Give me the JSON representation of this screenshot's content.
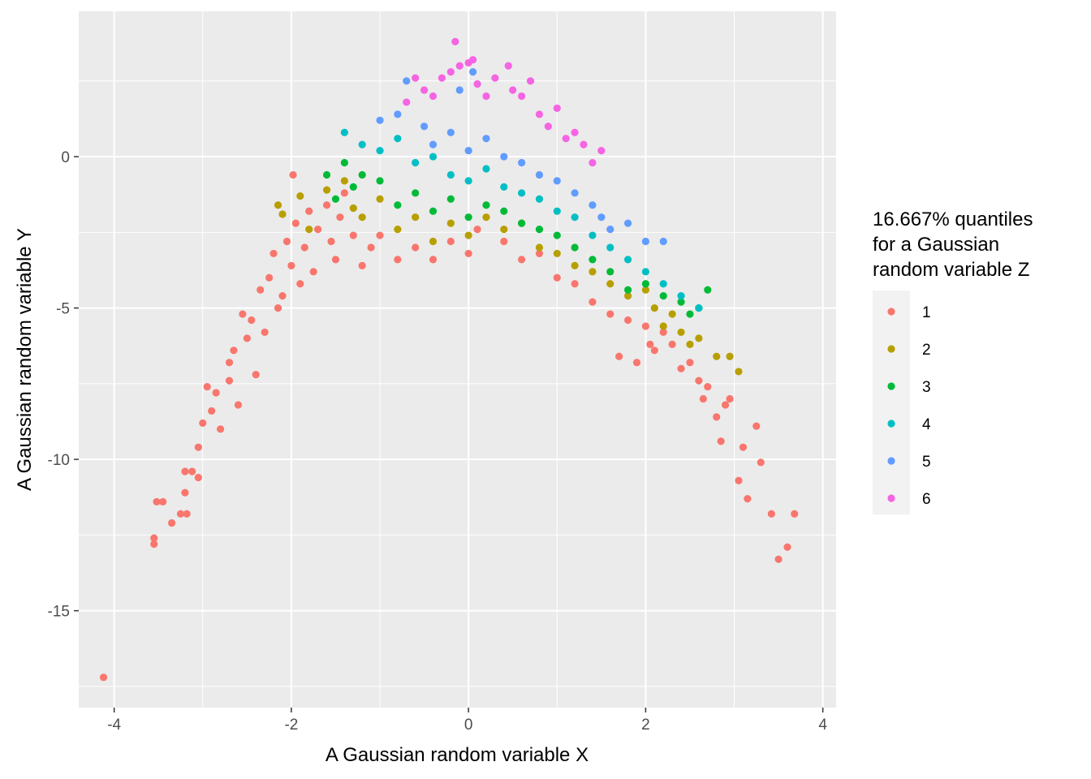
{
  "chart_data": {
    "type": "scatter",
    "title": "",
    "xlabel": "A Gaussian random variable X",
    "ylabel": "A Gaussian random variable Y",
    "xlim": [
      -4.4,
      4.15
    ],
    "ylim": [
      -18.2,
      4.8
    ],
    "x_ticks": [
      -4,
      -2,
      0,
      2,
      4
    ],
    "y_ticks": [
      0,
      -5,
      -10,
      -15
    ],
    "x_tick_labels": [
      "-4",
      "-2",
      "0",
      "2",
      "4"
    ],
    "y_tick_labels": [
      "0",
      "-5",
      "-10",
      "-15"
    ],
    "grid": true,
    "background": "#EBEBEB",
    "legend": {
      "title_lines": [
        "16.667% quantiles",
        "for a Gaussian",
        "random variable Z"
      ],
      "position": "right"
    },
    "series": [
      {
        "name": "1",
        "color": "#F8766D",
        "points": [
          [
            -4.12,
            -17.2
          ],
          [
            -3.55,
            -12.8
          ],
          [
            -3.55,
            -12.6
          ],
          [
            -3.52,
            -11.4
          ],
          [
            -3.45,
            -11.4
          ],
          [
            -3.35,
            -12.1
          ],
          [
            -3.25,
            -11.8
          ],
          [
            -3.2,
            -10.4
          ],
          [
            -3.2,
            -11.1
          ],
          [
            -3.18,
            -11.8
          ],
          [
            -3.12,
            -10.4
          ],
          [
            -3.05,
            -9.6
          ],
          [
            -3.05,
            -10.6
          ],
          [
            -3.0,
            -8.8
          ],
          [
            -2.95,
            -7.6
          ],
          [
            -2.9,
            -8.4
          ],
          [
            -2.85,
            -7.8
          ],
          [
            -2.8,
            -9.0
          ],
          [
            -2.7,
            -6.8
          ],
          [
            -2.7,
            -7.4
          ],
          [
            -2.65,
            -6.4
          ],
          [
            -2.6,
            -8.2
          ],
          [
            -2.55,
            -5.2
          ],
          [
            -2.5,
            -6.0
          ],
          [
            -2.45,
            -5.4
          ],
          [
            -2.4,
            -7.2
          ],
          [
            -2.35,
            -4.4
          ],
          [
            -2.3,
            -5.8
          ],
          [
            -2.25,
            -4.0
          ],
          [
            -2.2,
            -3.2
          ],
          [
            -2.15,
            -5.0
          ],
          [
            -2.1,
            -4.6
          ],
          [
            -2.05,
            -2.8
          ],
          [
            -2.0,
            -3.6
          ],
          [
            -1.98,
            -0.6
          ],
          [
            -1.95,
            -2.2
          ],
          [
            -1.9,
            -4.2
          ],
          [
            -1.85,
            -3.0
          ],
          [
            -1.8,
            -1.8
          ],
          [
            -1.75,
            -3.8
          ],
          [
            -1.7,
            -2.4
          ],
          [
            -1.6,
            -1.6
          ],
          [
            -1.55,
            -2.8
          ],
          [
            -1.5,
            -3.4
          ],
          [
            -1.45,
            -2.0
          ],
          [
            -1.4,
            -1.2
          ],
          [
            -1.3,
            -2.6
          ],
          [
            -1.2,
            -3.6
          ],
          [
            -1.1,
            -3.0
          ],
          [
            -1.0,
            -2.6
          ],
          [
            -0.8,
            -3.4
          ],
          [
            -0.6,
            -3.0
          ],
          [
            -0.4,
            -3.4
          ],
          [
            -0.2,
            -2.8
          ],
          [
            0.0,
            -3.2
          ],
          [
            0.1,
            -2.4
          ],
          [
            0.4,
            -2.8
          ],
          [
            0.6,
            -3.4
          ],
          [
            0.8,
            -3.2
          ],
          [
            1.0,
            -4.0
          ],
          [
            1.2,
            -4.2
          ],
          [
            1.4,
            -4.8
          ],
          [
            1.6,
            -5.2
          ],
          [
            1.7,
            -6.6
          ],
          [
            1.8,
            -5.4
          ],
          [
            1.9,
            -6.8
          ],
          [
            2.0,
            -5.6
          ],
          [
            2.05,
            -6.2
          ],
          [
            2.1,
            -6.4
          ],
          [
            2.2,
            -5.8
          ],
          [
            2.3,
            -6.2
          ],
          [
            2.4,
            -7.0
          ],
          [
            2.5,
            -6.8
          ],
          [
            2.6,
            -7.4
          ],
          [
            2.65,
            -8.0
          ],
          [
            2.7,
            -7.6
          ],
          [
            2.8,
            -8.6
          ],
          [
            2.85,
            -9.4
          ],
          [
            2.9,
            -8.2
          ],
          [
            2.95,
            -8.0
          ],
          [
            3.05,
            -10.7
          ],
          [
            3.1,
            -9.6
          ],
          [
            3.15,
            -11.3
          ],
          [
            3.25,
            -8.9
          ],
          [
            3.3,
            -10.1
          ],
          [
            3.42,
            -11.8
          ],
          [
            3.5,
            -13.3
          ],
          [
            3.6,
            -12.9
          ],
          [
            3.68,
            -11.8
          ]
        ]
      },
      {
        "name": "2",
        "color": "#B79F00",
        "points": [
          [
            -2.15,
            -1.6
          ],
          [
            -2.1,
            -1.9
          ],
          [
            -1.9,
            -1.3
          ],
          [
            -1.8,
            -2.4
          ],
          [
            -1.6,
            -1.1
          ],
          [
            -1.4,
            -0.8
          ],
          [
            -1.3,
            -1.7
          ],
          [
            -1.2,
            -2.0
          ],
          [
            -1.0,
            -1.4
          ],
          [
            -0.8,
            -2.4
          ],
          [
            -0.6,
            -2.0
          ],
          [
            -0.4,
            -2.8
          ],
          [
            -0.2,
            -2.2
          ],
          [
            0.0,
            -2.6
          ],
          [
            0.2,
            -2.0
          ],
          [
            0.4,
            -2.4
          ],
          [
            0.6,
            -2.2
          ],
          [
            0.8,
            -3.0
          ],
          [
            1.0,
            -3.2
          ],
          [
            1.2,
            -3.6
          ],
          [
            1.4,
            -3.8
          ],
          [
            1.6,
            -4.2
          ],
          [
            1.8,
            -4.6
          ],
          [
            2.0,
            -4.4
          ],
          [
            2.1,
            -5.0
          ],
          [
            2.2,
            -5.6
          ],
          [
            2.3,
            -5.2
          ],
          [
            2.4,
            -5.8
          ],
          [
            2.5,
            -6.2
          ],
          [
            2.6,
            -6.0
          ],
          [
            2.8,
            -6.6
          ],
          [
            2.95,
            -6.6
          ],
          [
            3.05,
            -7.1
          ]
        ]
      },
      {
        "name": "3",
        "color": "#00BA38",
        "points": [
          [
            -1.6,
            -0.6
          ],
          [
            -1.5,
            -1.4
          ],
          [
            -1.4,
            -0.2
          ],
          [
            -1.3,
            -1.0
          ],
          [
            -1.2,
            -0.6
          ],
          [
            -1.0,
            -0.8
          ],
          [
            -0.8,
            -1.6
          ],
          [
            -0.6,
            -1.2
          ],
          [
            -0.4,
            -1.8
          ],
          [
            -0.2,
            -1.4
          ],
          [
            0.0,
            -2.0
          ],
          [
            0.2,
            -1.6
          ],
          [
            0.4,
            -1.8
          ],
          [
            0.6,
            -2.2
          ],
          [
            0.8,
            -2.4
          ],
          [
            1.0,
            -2.6
          ],
          [
            1.2,
            -3.0
          ],
          [
            1.4,
            -3.4
          ],
          [
            1.6,
            -3.8
          ],
          [
            1.8,
            -4.4
          ],
          [
            2.0,
            -4.2
          ],
          [
            2.2,
            -4.6
          ],
          [
            2.4,
            -4.8
          ],
          [
            2.5,
            -5.2
          ],
          [
            2.6,
            -5.0
          ],
          [
            2.7,
            -4.4
          ]
        ]
      },
      {
        "name": "4",
        "color": "#00BFC4",
        "points": [
          [
            -1.4,
            0.8
          ],
          [
            -1.2,
            0.4
          ],
          [
            -1.0,
            0.2
          ],
          [
            -0.8,
            0.6
          ],
          [
            -0.6,
            -0.2
          ],
          [
            -0.4,
            0.0
          ],
          [
            -0.2,
            -0.6
          ],
          [
            0.0,
            -0.8
          ],
          [
            0.2,
            -0.4
          ],
          [
            0.4,
            -1.0
          ],
          [
            0.6,
            -1.2
          ],
          [
            0.8,
            -1.4
          ],
          [
            1.0,
            -1.8
          ],
          [
            1.2,
            -2.0
          ],
          [
            1.4,
            -2.6
          ],
          [
            1.6,
            -3.0
          ],
          [
            1.8,
            -3.4
          ],
          [
            2.0,
            -3.8
          ],
          [
            2.2,
            -4.2
          ],
          [
            2.4,
            -4.6
          ],
          [
            2.6,
            -5.0
          ]
        ]
      },
      {
        "name": "5",
        "color": "#619CFF",
        "points": [
          [
            -1.0,
            1.2
          ],
          [
            -0.8,
            1.4
          ],
          [
            -0.7,
            2.5
          ],
          [
            -0.5,
            1.0
          ],
          [
            -0.4,
            0.4
          ],
          [
            -0.2,
            0.8
          ],
          [
            0.0,
            0.2
          ],
          [
            0.2,
            0.6
          ],
          [
            0.4,
            0.0
          ],
          [
            0.6,
            -0.2
          ],
          [
            0.8,
            -0.6
          ],
          [
            1.0,
            -0.8
          ],
          [
            1.2,
            -1.2
          ],
          [
            1.4,
            -1.6
          ],
          [
            1.5,
            -2.0
          ],
          [
            1.6,
            -2.4
          ],
          [
            1.8,
            -2.2
          ],
          [
            2.0,
            -2.8
          ],
          [
            2.2,
            -2.8
          ],
          [
            0.05,
            2.8
          ],
          [
            -0.1,
            2.2
          ]
        ]
      },
      {
        "name": "6",
        "color": "#F564E3",
        "points": [
          [
            -0.7,
            1.8
          ],
          [
            -0.6,
            2.6
          ],
          [
            -0.5,
            2.2
          ],
          [
            -0.4,
            2.0
          ],
          [
            -0.3,
            2.6
          ],
          [
            -0.2,
            2.8
          ],
          [
            -0.15,
            3.8
          ],
          [
            -0.1,
            3.0
          ],
          [
            0.0,
            3.1
          ],
          [
            0.05,
            3.2
          ],
          [
            0.1,
            2.4
          ],
          [
            0.2,
            2.0
          ],
          [
            0.3,
            2.6
          ],
          [
            0.45,
            3.0
          ],
          [
            0.5,
            2.2
          ],
          [
            0.6,
            2.0
          ],
          [
            0.7,
            2.5
          ],
          [
            0.8,
            1.4
          ],
          [
            0.9,
            1.0
          ],
          [
            1.0,
            1.6
          ],
          [
            1.1,
            0.6
          ],
          [
            1.2,
            0.8
          ],
          [
            1.3,
            0.4
          ],
          [
            1.5,
            0.2
          ],
          [
            1.4,
            -0.2
          ]
        ]
      }
    ]
  }
}
